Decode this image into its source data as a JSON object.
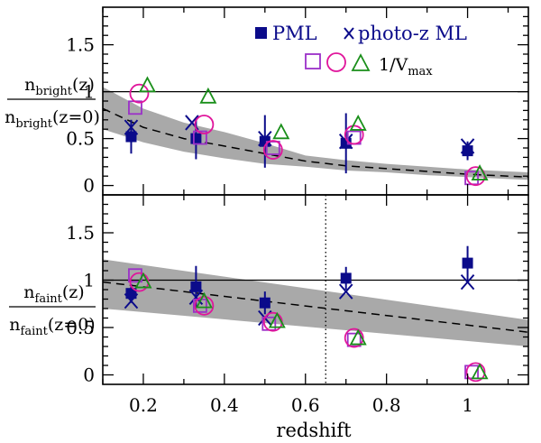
{
  "chart_data": [
    {
      "type": "scatter",
      "panel": "top",
      "ylabel_num": "n",
      "ylabel_num_sub": "bright",
      "ylabel_num_arg": "(z)",
      "ylabel_den": "n",
      "ylabel_den_sub": "bright",
      "ylabel_den_arg": "(z=0)",
      "xlim": [
        0.1,
        1.15
      ],
      "ylim": [
        -0.1,
        1.9
      ],
      "yticks": [
        0,
        0.5,
        1,
        1.5
      ],
      "ytick_labels": [
        "0",
        "0.5",
        "1",
        "1.5"
      ],
      "reference_line": 1,
      "model_dashed": {
        "x": [
          0.1,
          0.2,
          0.3,
          0.4,
          0.5,
          0.6,
          0.7,
          0.8,
          0.9,
          1.0,
          1.1,
          1.15
        ],
        "y": [
          0.82,
          0.62,
          0.5,
          0.42,
          0.34,
          0.26,
          0.21,
          0.18,
          0.15,
          0.12,
          0.1,
          0.09
        ]
      },
      "model_band": {
        "x": [
          0.1,
          0.2,
          0.3,
          0.4,
          0.5,
          0.6,
          0.7,
          0.8,
          0.9,
          1.0,
          1.1,
          1.15
        ],
        "upper": [
          1.05,
          0.82,
          0.67,
          0.57,
          0.45,
          0.32,
          0.27,
          0.23,
          0.2,
          0.17,
          0.15,
          0.14
        ],
        "lower": [
          0.6,
          0.46,
          0.36,
          0.29,
          0.23,
          0.2,
          0.16,
          0.14,
          0.11,
          0.09,
          0.07,
          0.06
        ]
      },
      "series": [
        {
          "name": "PML",
          "marker": "filled-square",
          "color": "#0b0b8a",
          "x": [
            0.17,
            0.33,
            0.5,
            0.7,
            1.0
          ],
          "y": [
            0.52,
            0.5,
            0.47,
            0.45,
            0.37
          ],
          "err": [
            0.18,
            0.22,
            0.28,
            0.32,
            0.1
          ]
        },
        {
          "name": "photo-z ML",
          "marker": "cross",
          "color": "#0b0b8a",
          "x": [
            0.17,
            0.32,
            0.5,
            0.7,
            1.0
          ],
          "y": [
            0.62,
            0.67,
            0.5,
            0.47,
            0.42
          ],
          "err": []
        },
        {
          "name": "1/V_max",
          "marker": "open-square",
          "color": "#9b30c8",
          "x": [
            0.18,
            0.34,
            0.52,
            0.72,
            1.01
          ],
          "y": [
            0.83,
            0.51,
            0.4,
            0.51,
            0.08
          ],
          "err": []
        },
        {
          "name": "1/V_max",
          "marker": "open-circle",
          "color": "#e0159b",
          "x": [
            0.19,
            0.35,
            0.52,
            0.72,
            1.02
          ],
          "y": [
            0.98,
            0.65,
            0.38,
            0.54,
            0.1
          ],
          "err": []
        },
        {
          "name": "1/V_max",
          "marker": "open-triangle",
          "color": "#1a8f1a",
          "x": [
            0.21,
            0.36,
            0.54,
            0.73,
            1.03
          ],
          "y": [
            1.07,
            0.95,
            0.57,
            0.66,
            0.13
          ],
          "err": []
        }
      ],
      "legend": {
        "pml_label": "PML",
        "photoz_label": "photo-z ML",
        "vmax_label_main": "1/V",
        "vmax_label_sub": "max",
        "placement": "top-right"
      }
    },
    {
      "type": "scatter",
      "panel": "bottom",
      "ylabel_num": "n",
      "ylabel_num_sub": "faint",
      "ylabel_num_arg": "(z)",
      "ylabel_den": "n",
      "ylabel_den_sub": "faint",
      "ylabel_den_arg": "(z=0)",
      "xlabel": "redshift",
      "xlim": [
        0.1,
        1.15
      ],
      "ylim": [
        -0.1,
        1.9
      ],
      "xticks": [
        0.2,
        0.4,
        0.6,
        0.8,
        1.0
      ],
      "xtick_labels": [
        "0.2",
        "0.4",
        "0.6",
        "0.8",
        "1"
      ],
      "yticks": [
        0,
        0.5,
        1,
        1.5
      ],
      "ytick_labels": [
        "0",
        "0.5",
        "1",
        "1.5"
      ],
      "reference_line": 1,
      "vertical_dotted_x": 0.65,
      "model_dashed": {
        "x": [
          0.1,
          1.15
        ],
        "y": [
          0.98,
          0.45
        ]
      },
      "model_band": {
        "x": [
          0.1,
          1.15
        ],
        "upper": [
          1.22,
          0.58
        ],
        "lower": [
          0.7,
          0.3
        ]
      },
      "series": [
        {
          "name": "PML",
          "marker": "filled-square",
          "color": "#0b0b8a",
          "x": [
            0.17,
            0.33,
            0.5,
            0.7,
            1.0
          ],
          "y": [
            0.86,
            0.93,
            0.76,
            1.02,
            1.18
          ],
          "err": [
            0.1,
            0.22,
            0.12,
            0.12,
            0.18
          ]
        },
        {
          "name": "photo-z ML",
          "marker": "cross",
          "color": "#0b0b8a",
          "x": [
            0.17,
            0.33,
            0.5,
            0.7,
            1.0
          ],
          "y": [
            0.78,
            0.82,
            0.6,
            0.88,
            0.98
          ],
          "err": []
        },
        {
          "name": "1/V_max",
          "marker": "open-square",
          "color": "#9b30c8",
          "x": [
            0.18,
            0.34,
            0.51,
            0.72,
            1.01
          ],
          "y": [
            1.05,
            0.73,
            0.54,
            0.37,
            0.03
          ],
          "err": []
        },
        {
          "name": "1/V_max",
          "marker": "open-circle",
          "color": "#e0159b",
          "x": [
            0.19,
            0.35,
            0.52,
            0.72,
            1.02
          ],
          "y": [
            0.98,
            0.73,
            0.56,
            0.39,
            0.03
          ],
          "err": []
        },
        {
          "name": "1/V_max",
          "marker": "open-triangle",
          "color": "#1a8f1a",
          "x": [
            0.2,
            0.35,
            0.53,
            0.73,
            1.03
          ],
          "y": [
            0.99,
            0.78,
            0.57,
            0.39,
            0.03
          ],
          "err": []
        }
      ]
    }
  ]
}
